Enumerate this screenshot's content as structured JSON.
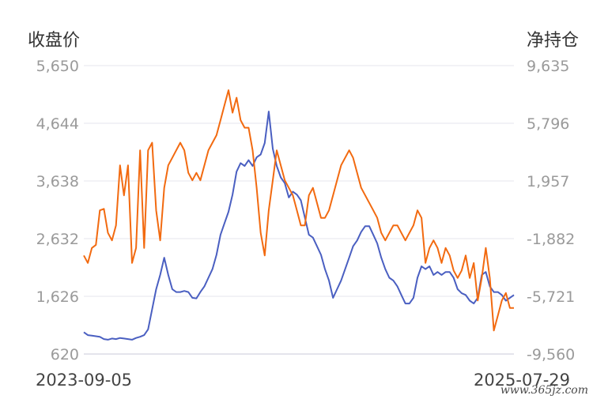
{
  "chart_data": {
    "type": "line",
    "left_axis_label": "收盘价",
    "right_axis_label": "净持仓",
    "x_start_label": "2023-09-05",
    "x_end_label": "2025-07-29",
    "left_ticks": [
      "5,650",
      "4,644",
      "3,638",
      "2,632",
      "1,626",
      "620"
    ],
    "right_ticks": [
      "9,635",
      "5,796",
      "1,957",
      "-1,882",
      "-5,721",
      "-9,560"
    ],
    "ylim_left": [
      620,
      5650
    ],
    "ylim_right": [
      -9560,
      9635
    ],
    "grid": true,
    "series": [
      {
        "axis": "left",
        "color": "#4a5fc1",
        "values": [
          1000,
          950,
          940,
          930,
          920,
          880,
          870,
          890,
          880,
          900,
          890,
          880,
          870,
          900,
          920,
          950,
          1050,
          1400,
          1750,
          2000,
          2300,
          2000,
          1750,
          1700,
          1700,
          1720,
          1700,
          1600,
          1590,
          1700,
          1800,
          1950,
          2100,
          2350,
          2700,
          2900,
          3100,
          3400,
          3800,
          3950,
          3900,
          4000,
          3900,
          4050,
          4100,
          4300,
          4850,
          4200,
          3900,
          3700,
          3600,
          3350,
          3450,
          3400,
          3300,
          3000,
          2700,
          2650,
          2500,
          2350,
          2100,
          1900,
          1600,
          1750,
          1900,
          2100,
          2300,
          2500,
          2600,
          2750,
          2850,
          2850,
          2700,
          2550,
          2300,
          2100,
          1950,
          1900,
          1800,
          1650,
          1500,
          1500,
          1600,
          1950,
          2150,
          2100,
          2150,
          2000,
          2050,
          2000,
          2050,
          2050,
          1950,
          1750,
          1680,
          1650,
          1550,
          1500,
          1600,
          2000,
          2050,
          1800,
          1700,
          1700,
          1650,
          1550,
          1600,
          1650
        ]
      },
      {
        "axis": "right",
        "color": "#f26a10",
        "values": [
          -3000,
          -3500,
          -2500,
          -2300,
          0,
          100,
          -1500,
          -2000,
          -1000,
          3000,
          1000,
          3000,
          -3500,
          -2500,
          4000,
          -2500,
          4000,
          4500,
          0,
          -2000,
          1500,
          3000,
          3500,
          4000,
          4500,
          4000,
          2500,
          2000,
          2500,
          2000,
          3000,
          4000,
          4500,
          5000,
          6000,
          7000,
          8000,
          6500,
          7500,
          6000,
          5500,
          5500,
          4000,
          1500,
          -1500,
          -3000,
          0,
          2000,
          4000,
          3000,
          2000,
          1500,
          1000,
          0,
          -1000,
          -1000,
          1000,
          1500,
          500,
          -500,
          -500,
          0,
          1000,
          2000,
          3000,
          3500,
          4000,
          3500,
          2500,
          1500,
          1000,
          500,
          0,
          -500,
          -1500,
          -2000,
          -1500,
          -1000,
          -1000,
          -1500,
          -2000,
          -1500,
          -1000,
          0,
          -500,
          -3500,
          -2500,
          -2000,
          -2500,
          -3500,
          -2500,
          -3000,
          -4000,
          -4500,
          -4000,
          -3000,
          -4500,
          -3500,
          -6000,
          -4500,
          -2500,
          -4500,
          -8000,
          -7000,
          -6000,
          -5500,
          -6500,
          -6500
        ]
      }
    ]
  },
  "watermark": "www.365jz.com"
}
